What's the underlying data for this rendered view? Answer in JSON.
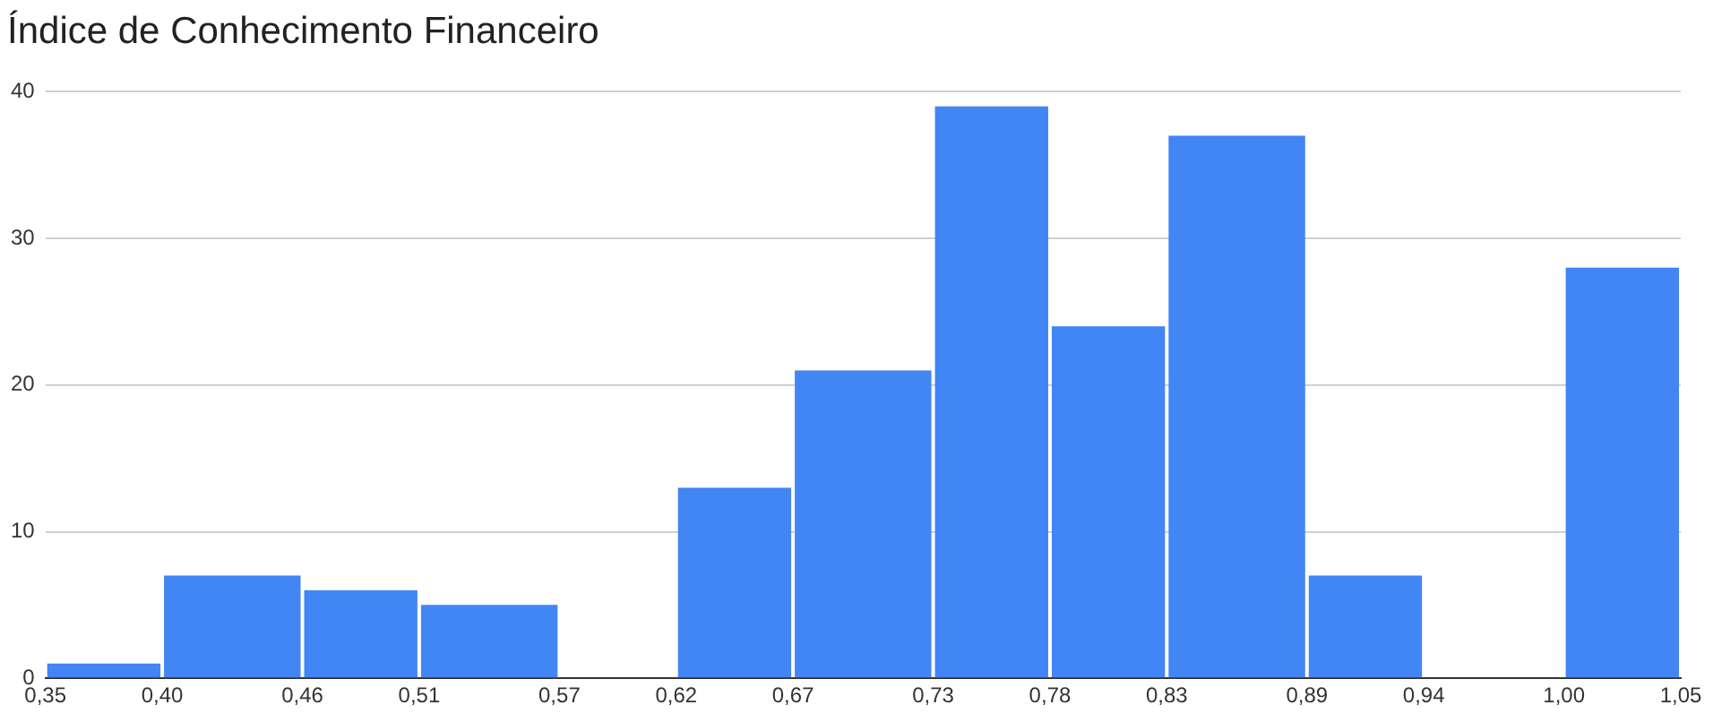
{
  "chart_data": {
    "type": "histogram",
    "title": "Índice de Conhecimento Financeiro",
    "bins": [
      0.35,
      0.4,
      0.46,
      0.51,
      0.57,
      0.62,
      0.67,
      0.73,
      0.78,
      0.83,
      0.89,
      0.94,
      1.0,
      1.05
    ],
    "values": [
      1,
      7,
      6,
      5,
      0,
      13,
      21,
      39,
      24,
      37,
      7,
      0,
      28
    ],
    "color": "#4285f4",
    "xlim": [
      0.35,
      1.05
    ],
    "xticks": [
      {
        "value": 0.35,
        "label": "0,35"
      },
      {
        "value": 0.4,
        "label": "0,40"
      },
      {
        "value": 0.46,
        "label": "0,46"
      },
      {
        "value": 0.51,
        "label": "0,51"
      },
      {
        "value": 0.57,
        "label": "0,57"
      },
      {
        "value": 0.62,
        "label": "0,62"
      },
      {
        "value": 0.67,
        "label": "0,67"
      },
      {
        "value": 0.73,
        "label": "0,73"
      },
      {
        "value": 0.78,
        "label": "0,78"
      },
      {
        "value": 0.83,
        "label": "0,83"
      },
      {
        "value": 0.89,
        "label": "0,89"
      },
      {
        "value": 0.94,
        "label": "0,94"
      },
      {
        "value": 1.0,
        "label": "1,00"
      },
      {
        "value": 1.05,
        "label": "1,05"
      }
    ],
    "ylim": [
      0,
      40
    ],
    "yticks": [
      0,
      10,
      20,
      30,
      40
    ],
    "grid": "y"
  }
}
